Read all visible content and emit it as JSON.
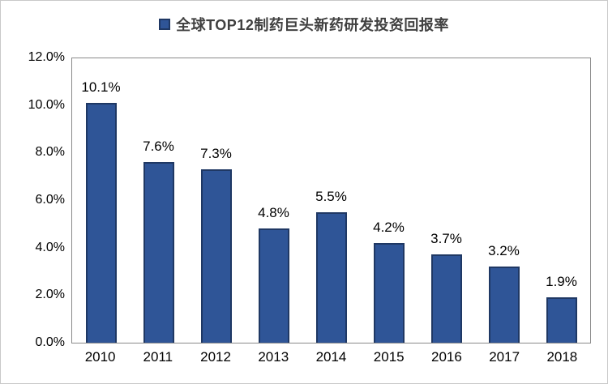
{
  "chart_data": {
    "type": "bar",
    "title": "全球TOP12制药巨头新药研发投资回报率",
    "categories": [
      "2010",
      "2011",
      "2012",
      "2013",
      "2014",
      "2015",
      "2016",
      "2017",
      "2018"
    ],
    "values": [
      10.1,
      7.6,
      7.3,
      4.8,
      5.5,
      4.2,
      3.7,
      3.2,
      1.9
    ],
    "data_labels": [
      "10.1%",
      "7.6%",
      "7.3%",
      "4.8%",
      "5.5%",
      "4.2%",
      "3.7%",
      "3.2%",
      "1.9%"
    ],
    "y_ticks": [
      "12.0%",
      "10.0%",
      "8.0%",
      "6.0%",
      "4.0%",
      "2.0%",
      "0.0%"
    ],
    "ylim": [
      0,
      12
    ],
    "xlabel": "",
    "ylabel": "",
    "grid": false,
    "legend_position": "top-center",
    "colors": {
      "bar_fill": "#2F5597",
      "bar_border": "#1F3864",
      "plot_border": "#8A8A8A",
      "outer_border": "#C9C9C9",
      "title_text": "#404040",
      "axis_text": "#000000"
    }
  }
}
